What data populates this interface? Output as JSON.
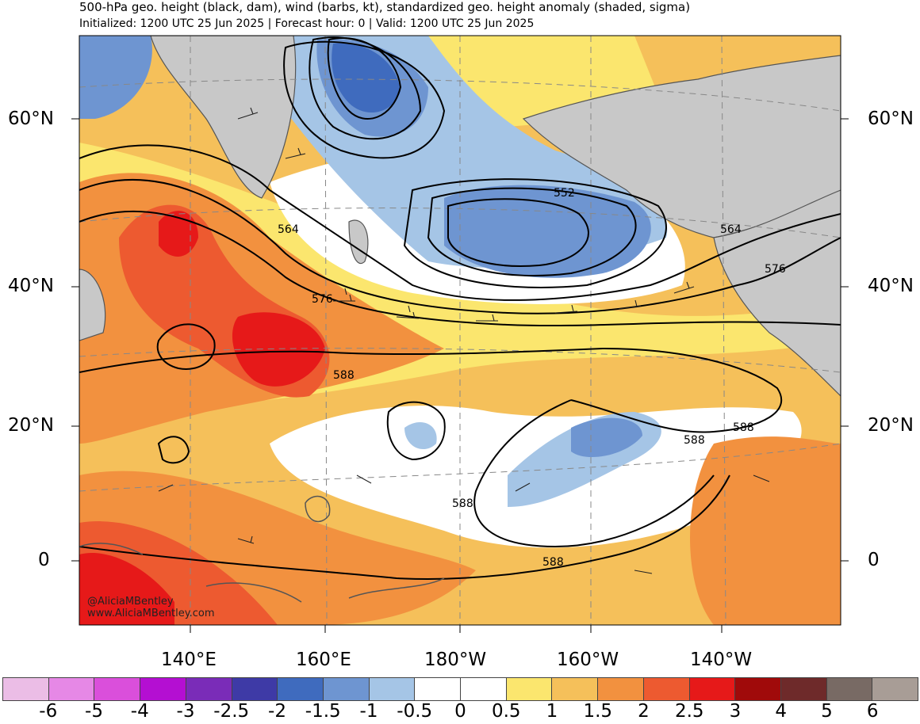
{
  "title": "500-hPa geo. height (black, dam), wind (barbs, kt), standardized geo. height anomaly (shaded, sigma)",
  "subtitle": "Initialized: 1200 UTC 25 Jun 2025 | Forecast hour: 0 | Valid: 1200 UTC 25 Jun 2025",
  "credit": {
    "handle": "@AliciaMBentley",
    "url": "www.AliciaMBentley.com"
  },
  "lat_labels": [
    "60°N",
    "40°N",
    "20°N",
    "0"
  ],
  "lon_labels": [
    "140°E",
    "160°E",
    "180°W",
    "160°W",
    "140°W"
  ],
  "contour_labels": [
    "552",
    "564",
    "564",
    "576",
    "576",
    "588",
    "588",
    "588",
    "588",
    "588"
  ],
  "colorbar": {
    "colors": [
      "#ebbde6",
      "#e688e6",
      "#da4fdb",
      "#b40fd2",
      "#7a2cb8",
      "#3e3aa6",
      "#3f6bbe",
      "#6e95d1",
      "#a5c5e6",
      "#ffffff",
      "#ffffff",
      "#fbe66e",
      "#f5c05a",
      "#f2913f",
      "#ed5a30",
      "#e61919",
      "#a00a0a",
      "#6e2a2a",
      "#786a64",
      "#a89d96"
    ],
    "labels": [
      "-6",
      "-5",
      "-4",
      "-3",
      "-2.5",
      "-2",
      "-1.5",
      "-1",
      "-0.5",
      "0",
      "0.5",
      "1",
      "1.5",
      "2",
      "2.5",
      "3",
      "4",
      "5",
      "6"
    ]
  },
  "colors": {
    "land": "#c8c8c8",
    "coast": "#555555",
    "graticule": "#888888",
    "contour": "#000000"
  }
}
